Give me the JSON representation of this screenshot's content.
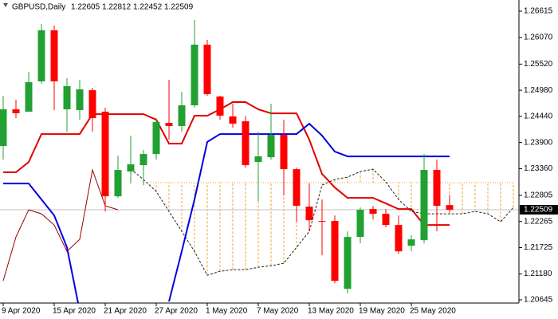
{
  "chart_data": {
    "type": "candlestick",
    "title": "GBPUSD,Daily",
    "categories": [
      "9 Apr 2020",
      null,
      null,
      null,
      "15 Apr 2020",
      null,
      null,
      null,
      "21 Apr 2020",
      null,
      null,
      null,
      "27 Apr 2020",
      null,
      null,
      null,
      "1 May 2020",
      null,
      null,
      null,
      "7 May 2020",
      null,
      null,
      null,
      "13 May 2020",
      null,
      null,
      null,
      "19 May 2020",
      null,
      null,
      null,
      "25 May 2020",
      null,
      null,
      null,
      null,
      null,
      null,
      null,
      null
    ],
    "open": [
      1.23826,
      1.24585,
      1.24536,
      1.25163,
      1.26219,
      1.24585,
      1.24569,
      1.24981,
      1.24536,
      1.22787,
      1.23299,
      1.23431,
      1.23661,
      1.24305,
      1.24239,
      1.24668,
      1.25922,
      1.24849,
      1.24437,
      1.24338,
      1.23496,
      1.23595,
      1.24057,
      1.23348,
      1.22573,
      1.22276,
      1.22276,
      1.20873,
      1.21946,
      1.22523,
      1.22424,
      1.22193,
      1.21764,
      1.2188,
      1.23332,
      1.22605,
      null,
      null,
      null,
      null,
      null
    ],
    "high": [
      1.24866,
      1.24784,
      1.25361,
      1.26351,
      1.26318,
      1.25229,
      1.25196,
      1.25031,
      1.24618,
      1.23628,
      1.24041,
      1.23744,
      1.24404,
      1.25196,
      1.24948,
      1.26434,
      1.26021,
      1.24866,
      1.24701,
      1.24453,
      1.24123,
      1.24701,
      1.24371,
      1.23381,
      1.23051,
      1.22721,
      1.22391,
      1.22061,
      1.22556,
      1.22589,
      1.22523,
      1.22391,
      1.21979,
      1.23661,
      1.23546,
      1.22812,
      null,
      null,
      null,
      null,
      null
    ],
    "low": [
      1.23546,
      1.24404,
      1.24536,
      1.25114,
      1.24569,
      1.24123,
      1.24371,
      1.24123,
      1.22474,
      1.22754,
      1.23051,
      1.23018,
      1.23546,
      1.23958,
      1.24123,
      1.24618,
      1.24866,
      1.24371,
      1.24206,
      1.23381,
      1.22688,
      1.23546,
      1.22804,
      1.22259,
      1.22061,
      1.21566,
      1.20988,
      1.20774,
      1.21814,
      1.22309,
      1.22144,
      1.21599,
      1.21648,
      1.21814,
      1.22061,
      1.22452,
      null,
      null,
      null,
      null,
      null
    ],
    "close": [
      1.24585,
      1.24503,
      1.25147,
      1.26219,
      1.25163,
      1.25064,
      1.24998,
      1.24404,
      1.22787,
      1.23332,
      1.23447,
      1.23661,
      1.24321,
      1.24239,
      1.24668,
      1.25922,
      1.24899,
      1.24453,
      1.24288,
      1.23431,
      1.23612,
      1.24057,
      1.23348,
      1.22589,
      1.22292,
      1.22259,
      1.21038,
      1.21946,
      1.22507,
      1.22424,
      1.22193,
      1.21648,
      1.21896,
      1.23332,
      1.22589,
      1.22509,
      null,
      null,
      null,
      null,
      null
    ],
    "up_color": "#22a032",
    "down_color": "#ff0000",
    "series": [
      {
        "color": "#e00000",
        "style": "solid",
        "values": [
          1.23283,
          1.23283,
          1.23496,
          1.24074,
          1.24074,
          1.24074,
          1.24074,
          1.24486,
          1.24486,
          1.24486,
          1.24486,
          1.24486,
          1.24371,
          1.23876,
          1.23876,
          1.24453,
          1.24453,
          1.24585,
          1.24734,
          1.24734,
          1.24585,
          1.24503,
          1.24503,
          1.24503,
          1.23958,
          1.2325,
          1.22969,
          1.22754,
          1.22754,
          1.22754,
          1.22639,
          1.22523,
          1.22523,
          1.22193,
          1.22193,
          1.22193,
          null,
          null,
          null,
          null,
          null
        ]
      },
      {
        "color": "#0000dd",
        "style": "solid",
        "values": [
          1.23051,
          1.23051,
          1.23051,
          1.22721,
          1.22391,
          1.21731,
          1.20413,
          null,
          null,
          null,
          null,
          null,
          null,
          1.20611,
          1.2165,
          1.22721,
          1.2391,
          1.24074,
          1.24074,
          1.24074,
          1.24074,
          1.24074,
          1.24074,
          1.24074,
          1.24288,
          1.24041,
          1.23711,
          1.23612,
          1.23612,
          1.23612,
          1.23612,
          1.23612,
          1.23612,
          1.23612,
          1.23612,
          1.23612,
          null,
          null,
          null,
          null,
          null
        ]
      },
      {
        "color": "#990000",
        "style": "thin",
        "values": [
          1.21038,
          1.21946,
          1.22507,
          1.22424,
          1.22193,
          1.21648,
          1.21896,
          1.23332,
          1.22589,
          1.22509,
          null,
          null,
          null,
          null,
          null,
          null,
          null,
          null,
          null,
          null,
          null,
          null,
          null,
          null,
          null,
          null,
          null,
          null,
          null,
          null,
          null,
          null,
          null,
          null,
          null,
          null,
          null,
          null,
          null,
          null,
          null
        ]
      },
      {
        "color": "#222222",
        "style": "dashed",
        "values": [
          null,
          null,
          null,
          null,
          null,
          null,
          null,
          null,
          null,
          null,
          1.23348,
          1.23134,
          1.22887,
          1.22474,
          1.22061,
          1.21648,
          1.21153,
          1.21236,
          1.21269,
          1.21269,
          1.21318,
          1.21351,
          1.21401,
          1.21731,
          1.22061,
          1.23018,
          1.23134,
          1.23184,
          1.23299,
          1.23348,
          1.23084,
          1.22721,
          1.22474,
          1.22424,
          1.22424,
          1.22424,
          1.22424,
          1.22474,
          1.22424,
          1.22259,
          1.22556
        ]
      },
      {
        "color": "#f0a030",
        "style": "dotted",
        "values": [
          null,
          null,
          null,
          null,
          null,
          null,
          null,
          null,
          null,
          null,
          null,
          1.23069,
          1.23069,
          1.23069,
          1.23069,
          1.23069,
          1.23069,
          1.23069,
          1.23069,
          1.23069,
          1.23069,
          1.23069,
          1.23069,
          1.23069,
          1.23069,
          1.23069,
          1.23069,
          1.23069,
          1.23069,
          1.23069,
          1.23069,
          1.23069,
          1.23069,
          1.23069,
          1.23069,
          1.23069,
          1.23069,
          1.23069,
          1.23069,
          1.23069,
          1.23069
        ]
      }
    ],
    "cloud_color": "#f0a030",
    "ylim": [
      1.20579,
      1.26846
    ],
    "yticks": [
      1.26615,
      {
        "value": 1.2607,
        "label": "1.26070"
      },
      {
        "value": 1.2552,
        "label": "1.25520"
      },
      {
        "value": 1.2498,
        "label": "1.24980"
      },
      {
        "value": 1.2444,
        "label": "1.24440"
      },
      {
        "value": 1.239,
        "label": "1.23900"
      },
      {
        "value": 1.2336,
        "label": "1.23360"
      },
      1.22805,
      1.22265,
      1.21725,
      {
        "value": 1.2118,
        "label": "1.21180"
      },
      1.20645
    ],
    "grid": false
  }
}
